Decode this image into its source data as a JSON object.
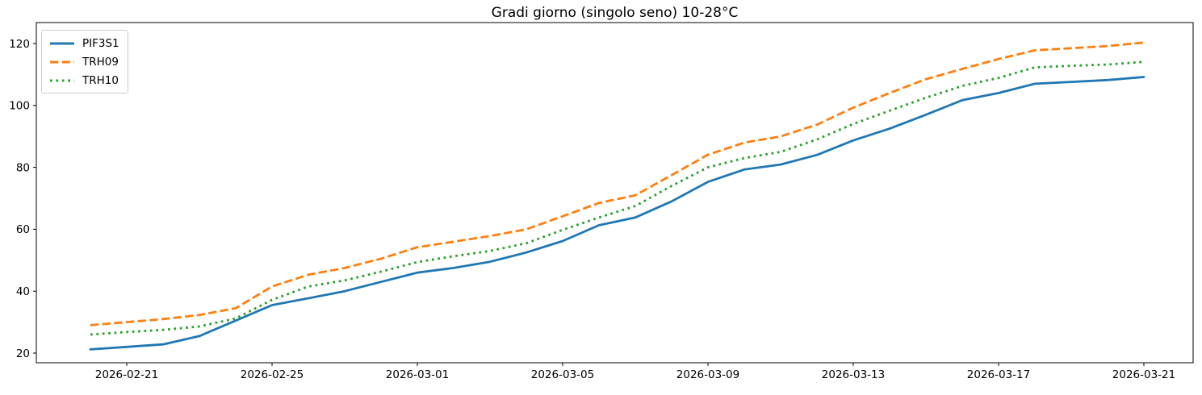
{
  "chart_data": {
    "type": "line",
    "title": "Gradi giorno (singolo seno) 10-28°C",
    "xlabel": "",
    "ylabel": "",
    "grid": false,
    "legend_position": "upper-left",
    "ylim": [
      16.9,
      126.8
    ],
    "yticks": [
      20,
      40,
      60,
      80,
      100,
      120
    ],
    "x": [
      "2026-02-20",
      "2026-02-21",
      "2026-02-22",
      "2026-02-23",
      "2026-02-24",
      "2026-02-25",
      "2026-02-26",
      "2026-02-27",
      "2026-02-28",
      "2026-03-01",
      "2026-03-02",
      "2026-03-03",
      "2026-03-04",
      "2026-03-05",
      "2026-03-06",
      "2026-03-07",
      "2026-03-08",
      "2026-03-09",
      "2026-03-10",
      "2026-03-11",
      "2026-03-12",
      "2026-03-13",
      "2026-03-14",
      "2026-03-15",
      "2026-03-16",
      "2026-03-17",
      "2026-03-18",
      "2026-03-19",
      "2026-03-20",
      "2026-03-21"
    ],
    "x_tick_indices": [
      1,
      5,
      9,
      13,
      17,
      21,
      25,
      29
    ],
    "series": [
      {
        "name": "PIF3S1",
        "color": "#1f77b4",
        "style": "solid",
        "values": [
          21.2,
          22.0,
          22.8,
          25.5,
          30.5,
          35.5,
          37.7,
          40.0,
          43.0,
          46.0,
          47.5,
          49.5,
          52.5,
          56.2,
          61.3,
          63.8,
          69.0,
          75.3,
          79.3,
          80.9,
          84.0,
          88.7,
          92.5,
          97.0,
          101.7,
          104.0,
          107.0,
          107.6,
          108.2,
          109.2
        ]
      },
      {
        "name": "TRH09",
        "color": "#ff7f0e",
        "style": "dashed",
        "values": [
          29.0,
          30.0,
          31.0,
          32.3,
          34.5,
          41.5,
          45.3,
          47.5,
          50.5,
          54.2,
          56.0,
          57.8,
          60.0,
          64.2,
          68.5,
          71.0,
          77.5,
          84.1,
          88.0,
          90.0,
          93.8,
          99.3,
          104.0,
          108.5,
          111.8,
          115.0,
          117.8,
          118.5,
          119.2,
          120.3
        ]
      },
      {
        "name": "TRH10",
        "color": "#2ca02c",
        "style": "dotted",
        "values": [
          26.0,
          26.8,
          27.5,
          28.6,
          31.2,
          37.2,
          41.5,
          43.5,
          46.3,
          49.4,
          51.3,
          53.0,
          55.5,
          59.8,
          63.8,
          67.5,
          74.0,
          80.0,
          83.0,
          85.0,
          89.0,
          94.0,
          98.3,
          102.5,
          106.3,
          108.9,
          112.3,
          112.8,
          113.2,
          114.1
        ]
      }
    ]
  }
}
